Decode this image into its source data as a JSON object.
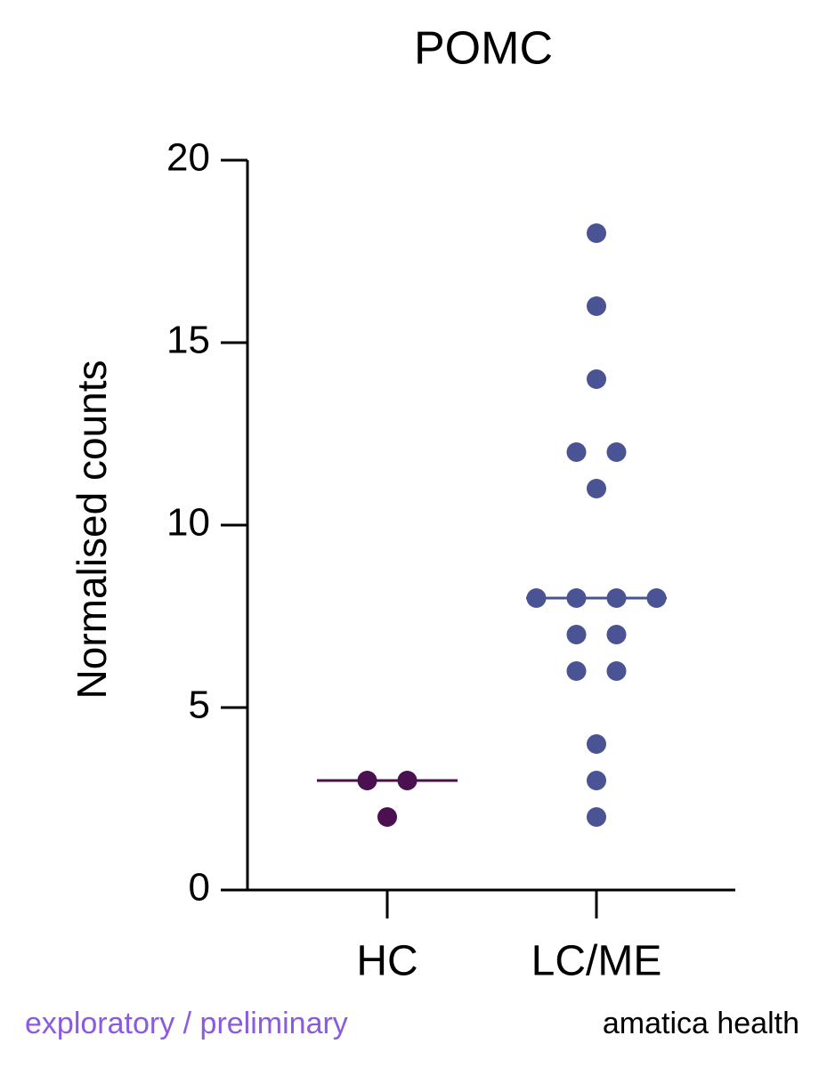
{
  "chart_data": {
    "type": "strip",
    "title": "POMC",
    "ylabel": "Normalised counts",
    "categories": [
      "HC",
      "LC/ME"
    ],
    "values": [
      [
        3,
        3,
        2
      ],
      [
        18,
        16,
        14,
        12,
        12,
        11,
        8,
        8,
        8,
        8,
        7,
        7,
        6,
        6,
        4,
        3,
        2
      ]
    ],
    "medians": [
      3,
      8
    ],
    "colors": [
      "#4a1050",
      "#4a5494"
    ],
    "ylim": [
      0,
      20
    ],
    "yticks": [
      0,
      5,
      10,
      15,
      20
    ],
    "footer_left": "exploratory / preliminary",
    "footer_right": "amatica health"
  }
}
